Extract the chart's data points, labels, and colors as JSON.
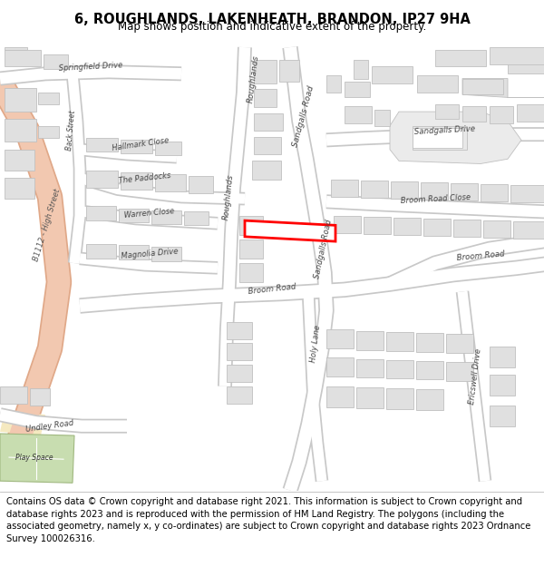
{
  "title": "6, ROUGHLANDS, LAKENHEATH, BRANDON, IP27 9HA",
  "subtitle": "Map shows position and indicative extent of the property.",
  "footer": "Contains OS data © Crown copyright and database right 2021. This information is subject to Crown copyright and database rights 2023 and is reproduced with the permission of HM Land Registry. The polygons (including the associated geometry, namely x, y co-ordinates) are subject to Crown copyright and database rights 2023 Ordnance Survey 100026316.",
  "map_bg": "#ffffff",
  "road_color": "#ffffff",
  "road_outline": "#c8c8c8",
  "road_outline2": "#d0d0d0",
  "building_color": "#e0e0e0",
  "building_outline": "#c0c0c0",
  "highlight_color": "#ff0000",
  "highlight_lw": 2.0,
  "green_color": "#c8ddb0",
  "green_outline": "#a0b880",
  "yellow_color": "#f5e9c0",
  "b1112_color": "#f2c8b0",
  "b1112_outline": "#e0a888",
  "title_fontsize": 10.5,
  "subtitle_fontsize": 8.5,
  "footer_fontsize": 7.2,
  "label_color": "#444444",
  "label_fontsize": 6.0
}
